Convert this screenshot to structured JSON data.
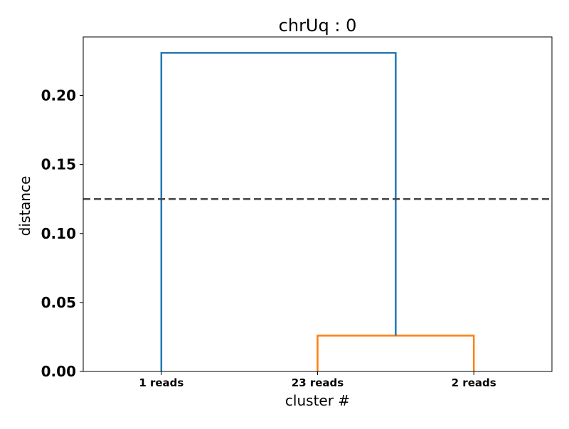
{
  "chart_data": {
    "type": "dendrogram",
    "title": "chrUq : 0",
    "xlabel": "cluster #",
    "ylabel": "distance",
    "ylim": [
      0,
      0.2425
    ],
    "yticks": [
      0.0,
      0.05,
      0.1,
      0.15,
      0.2
    ],
    "ytick_labels": [
      "0.00",
      "0.05",
      "0.10",
      "0.15",
      "0.20"
    ],
    "leaves": [
      "1 reads",
      "23 reads",
      "2 reads"
    ],
    "merges": [
      {
        "left": "23 reads",
        "right": "2 reads",
        "distance": 0.026,
        "color": "#ff7f0e"
      },
      {
        "left": "1 reads",
        "right": "cluster(23 reads, 2 reads)",
        "distance": 0.231,
        "color": "#1f77b4"
      }
    ],
    "threshold": {
      "value": 0.125,
      "style": "dashed",
      "color": "#444444"
    },
    "grid": false,
    "legend": false
  }
}
